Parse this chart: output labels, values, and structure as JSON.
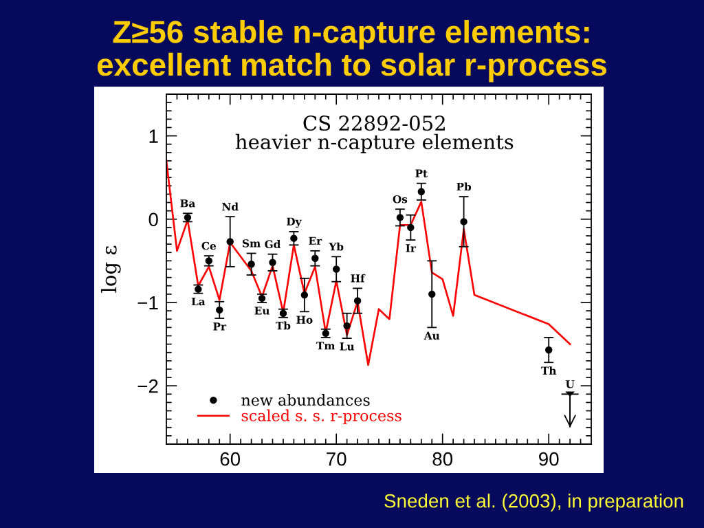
{
  "chart_data": {
    "type": "scatter",
    "title": "Z≥56 stable n-capture elements:\nexcellent match to solar r-process",
    "subtitle": "CS 22892-052\nheavier n-capture elements",
    "ylabel": "log ε",
    "xlim": [
      54,
      94
    ],
    "ylim": [
      -2.7,
      1.5
    ],
    "xticks": [
      {
        "value": 55,
        "label": null
      },
      {
        "value": 56,
        "label": null
      },
      {
        "value": 57,
        "label": null
      },
      {
        "value": 58,
        "label": null
      },
      {
        "value": 59,
        "label": null
      },
      60,
      {
        "value": 61,
        "label": null
      },
      {
        "value": 62,
        "label": null
      },
      {
        "value": 63,
        "label": null
      },
      {
        "value": 64,
        "label": null
      },
      {
        "value": 65,
        "label": null
      },
      {
        "value": 66,
        "label": null
      },
      {
        "value": 67,
        "label": null
      },
      {
        "value": 68,
        "label": null
      },
      {
        "value": 69,
        "label": null
      },
      70,
      {
        "value": 71,
        "label": null
      },
      {
        "value": 72,
        "label": null
      },
      {
        "value": 73,
        "label": null
      },
      {
        "value": 74,
        "label": null
      },
      {
        "value": 75,
        "label": null
      },
      {
        "value": 76,
        "label": null
      },
      {
        "value": 77,
        "label": null
      },
      {
        "value": 78,
        "label": null
      },
      {
        "value": 79,
        "label": null
      },
      80,
      {
        "value": 81,
        "label": null
      },
      {
        "value": 82,
        "label": null
      },
      {
        "value": 83,
        "label": null
      },
      {
        "value": 84,
        "label": null
      },
      {
        "value": 85,
        "label": null
      },
      {
        "value": 86,
        "label": null
      },
      {
        "value": 87,
        "label": null
      },
      {
        "value": 88,
        "label": null
      },
      {
        "value": 89,
        "label": null
      },
      90,
      {
        "value": 91,
        "label": null
      },
      {
        "value": 92,
        "label": null
      },
      {
        "value": 93,
        "label": null
      }
    ],
    "yticks": [
      {
        "value": -2.6,
        "label": null
      },
      {
        "value": -2.5,
        "label": null
      },
      {
        "value": -2.4,
        "label": null
      },
      {
        "value": -2.3,
        "label": null
      },
      {
        "value": -2.2,
        "label": null
      },
      {
        "value": -2.1,
        "label": null
      },
      {
        "value": -2,
        "label": "−2"
      },
      {
        "value": -1.9,
        "label": null
      },
      {
        "value": -1.8,
        "label": null
      },
      {
        "value": -1.7,
        "label": null
      },
      {
        "value": -1.6,
        "label": null
      },
      {
        "value": -1.5,
        "label": null
      },
      {
        "value": -1.4,
        "label": null
      },
      {
        "value": -1.3,
        "label": null
      },
      {
        "value": -1.2,
        "label": null
      },
      {
        "value": -1.1,
        "label": null
      },
      {
        "value": -1,
        "label": "−1"
      },
      {
        "value": -0.9,
        "label": null
      },
      {
        "value": -0.8,
        "label": null
      },
      {
        "value": -0.7,
        "label": null
      },
      {
        "value": -0.6,
        "label": null
      },
      {
        "value": -0.5,
        "label": null
      },
      {
        "value": -0.4,
        "label": null
      },
      {
        "value": -0.3,
        "label": null
      },
      {
        "value": -0.2,
        "label": null
      },
      {
        "value": -0.1,
        "label": null
      },
      0,
      {
        "value": 0.1,
        "label": null
      },
      {
        "value": 0.2,
        "label": null
      },
      {
        "value": 0.3,
        "label": null
      },
      {
        "value": 0.4,
        "label": null
      },
      {
        "value": 0.5,
        "label": null
      },
      {
        "value": 0.6,
        "label": null
      },
      {
        "value": 0.7,
        "label": null
      },
      {
        "value": 0.8,
        "label": null
      },
      {
        "value": 0.9,
        "label": null
      },
      1,
      {
        "value": 1.1,
        "label": null
      },
      {
        "value": 1.2,
        "label": null
      },
      {
        "value": 1.3,
        "label": null
      },
      {
        "value": 1.4,
        "label": null
      }
    ],
    "legend": "bottom left",
    "series": [
      {
        "name": "new abundances",
        "color": "#000000",
        "marker": "circle",
        "x": [
          56,
          57,
          58,
          59,
          60,
          62,
          63,
          64,
          65,
          66,
          67,
          68,
          69,
          70,
          71,
          72,
          76,
          77,
          78,
          79,
          82,
          90
        ],
        "values": [
          0.02,
          -0.84,
          -0.5,
          -1.09,
          -0.27,
          -0.54,
          -0.95,
          -0.52,
          -1.13,
          -0.23,
          -0.91,
          -0.47,
          -1.37,
          -0.6,
          -1.28,
          -0.98,
          0.02,
          -0.1,
          0.33,
          -0.9,
          -0.03,
          -1.57
        ],
        "errors": [
          0.05,
          0.05,
          0.06,
          0.1,
          0.3,
          0.13,
          0.05,
          0.1,
          0.05,
          0.08,
          0.2,
          0.09,
          0.05,
          0.15,
          0.15,
          0.15,
          0.1,
          0.15,
          0.1,
          0.4,
          0.3,
          0.15
        ]
      },
      {
        "color": "#000000",
        "marker": "triangle",
        "x": [
          92
        ],
        "values": [
          -2.1
        ],
        "errors": [
          [
            -2.5,
            -2.1
          ]
        ]
      },
      {
        "name": "scaled s. s. r-process",
        "type": "line",
        "color": "#ff0000",
        "x": [
          54,
          55,
          56,
          57,
          58,
          59,
          60,
          62,
          63,
          64,
          65,
          66,
          67,
          68,
          69,
          70,
          71,
          72,
          73,
          74,
          75,
          76,
          77,
          78,
          79,
          80,
          81,
          82,
          83,
          90,
          92
        ],
        "values": [
          0.7,
          -0.38,
          -0.01,
          -0.8,
          -0.57,
          -0.97,
          -0.28,
          -0.62,
          -0.93,
          -0.56,
          -1.12,
          -0.31,
          -0.89,
          -0.57,
          -1.36,
          -0.74,
          -1.39,
          -0.99,
          -1.75,
          -1.08,
          -1.2,
          -0.07,
          -0.07,
          0.21,
          -0.64,
          -0.72,
          -1.16,
          -0.12,
          -0.91,
          -1.26,
          -1.5
        ]
      }
    ],
    "annotations": [
      "Sneden et al. (2003), in preparation",
      {
        "text": "Ba",
        "x": 56,
        "y": 0.02
      },
      {
        "text": "La",
        "x": 57,
        "y": -0.84
      },
      {
        "text": "Ce",
        "x": 58,
        "y": -0.5
      },
      {
        "text": "Pr",
        "x": 59,
        "y": -1.09
      },
      {
        "text": "Nd",
        "x": 60,
        "y": -0.27
      },
      {
        "text": "Sm",
        "x": 62,
        "y": -0.54
      },
      {
        "text": "Eu",
        "x": 63,
        "y": -0.95
      },
      {
        "text": "Gd",
        "x": 64,
        "y": -0.52
      },
      {
        "text": "Tb",
        "x": 65,
        "y": -1.13
      },
      {
        "text": "Dy",
        "x": 66,
        "y": -0.23
      },
      {
        "text": "Ho",
        "x": 67,
        "y": -0.91
      },
      {
        "text": "Er",
        "x": 68,
        "y": -0.47
      },
      {
        "text": "Tm",
        "x": 69,
        "y": -1.37
      },
      {
        "text": "Yb",
        "x": 70,
        "y": -0.6
      },
      {
        "text": "Lu",
        "x": 71,
        "y": -1.28
      },
      {
        "text": "Hf",
        "x": 72,
        "y": -0.98
      },
      {
        "text": "Os",
        "x": 76,
        "y": 0.02
      },
      {
        "text": "Ir",
        "x": 77,
        "y": -0.1
      },
      {
        "text": "Pt",
        "x": 78,
        "y": 0.33
      },
      {
        "text": "Au",
        "x": 79,
        "y": -1.3
      },
      {
        "text": "Pb",
        "x": 82,
        "y": -0.03
      },
      {
        "text": "Th",
        "x": 90,
        "y": -1.57
      },
      {
        "text": "U",
        "x": 92,
        "y": -2.1
      }
    ]
  }
}
